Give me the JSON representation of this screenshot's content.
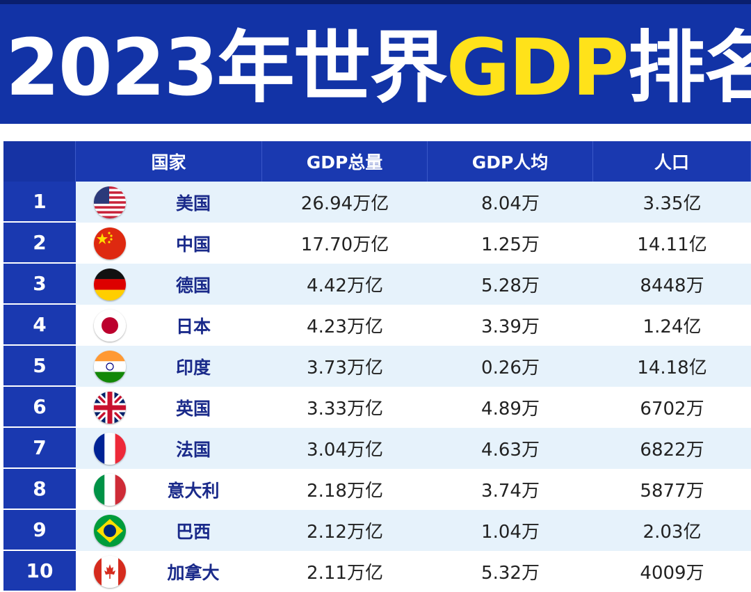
{
  "title": {
    "main": "2023年世界",
    "highlight": "GDP",
    "suffix": "排名"
  },
  "headers": {
    "rank": "",
    "country": "国家",
    "gdp_total": "GDP总量",
    "gdp_per_capita": "GDP人均",
    "population": "人口"
  },
  "rows": [
    {
      "rank": "1",
      "country": "美国",
      "flag": "us-flag-icon",
      "gdp_total": "26.94万亿",
      "gdp_per_capita": "8.04万",
      "population": "3.35亿"
    },
    {
      "rank": "2",
      "country": "中国",
      "flag": "china-flag-icon",
      "gdp_total": "17.70万亿",
      "gdp_per_capita": "1.25万",
      "population": "14.11亿"
    },
    {
      "rank": "3",
      "country": "德国",
      "flag": "germany-flag-icon",
      "gdp_total": "4.42万亿",
      "gdp_per_capita": "5.28万",
      "population": "8448万"
    },
    {
      "rank": "4",
      "country": "日本",
      "flag": "japan-flag-icon",
      "gdp_total": "4.23万亿",
      "gdp_per_capita": "3.39万",
      "population": "1.24亿"
    },
    {
      "rank": "5",
      "country": "印度",
      "flag": "india-flag-icon",
      "gdp_total": "3.73万亿",
      "gdp_per_capita": "0.26万",
      "population": "14.18亿"
    },
    {
      "rank": "6",
      "country": "英国",
      "flag": "uk-flag-icon",
      "gdp_total": "3.33万亿",
      "gdp_per_capita": "4.89万",
      "population": "6702万"
    },
    {
      "rank": "7",
      "country": "法国",
      "flag": "france-flag-icon",
      "gdp_total": "3.04万亿",
      "gdp_per_capita": "4.63万",
      "population": "6822万"
    },
    {
      "rank": "8",
      "country": "意大利",
      "flag": "italy-flag-icon",
      "gdp_total": "2.18万亿",
      "gdp_per_capita": "3.74万",
      "population": "5877万"
    },
    {
      "rank": "9",
      "country": "巴西",
      "flag": "brazil-flag-icon",
      "gdp_total": "2.12万亿",
      "gdp_per_capita": "1.04万",
      "population": "2.03亿"
    },
    {
      "rank": "10",
      "country": "加拿大",
      "flag": "canada-flag-icon",
      "gdp_total": "2.11万亿",
      "gdp_per_capita": "5.32万",
      "population": "4009万"
    }
  ],
  "colors": {
    "banner": "#1233a6",
    "header": "#1a39b0",
    "highlight": "#ffe21a",
    "row_alt": "#e6f2fb",
    "country_text": "#1a2a8a"
  }
}
